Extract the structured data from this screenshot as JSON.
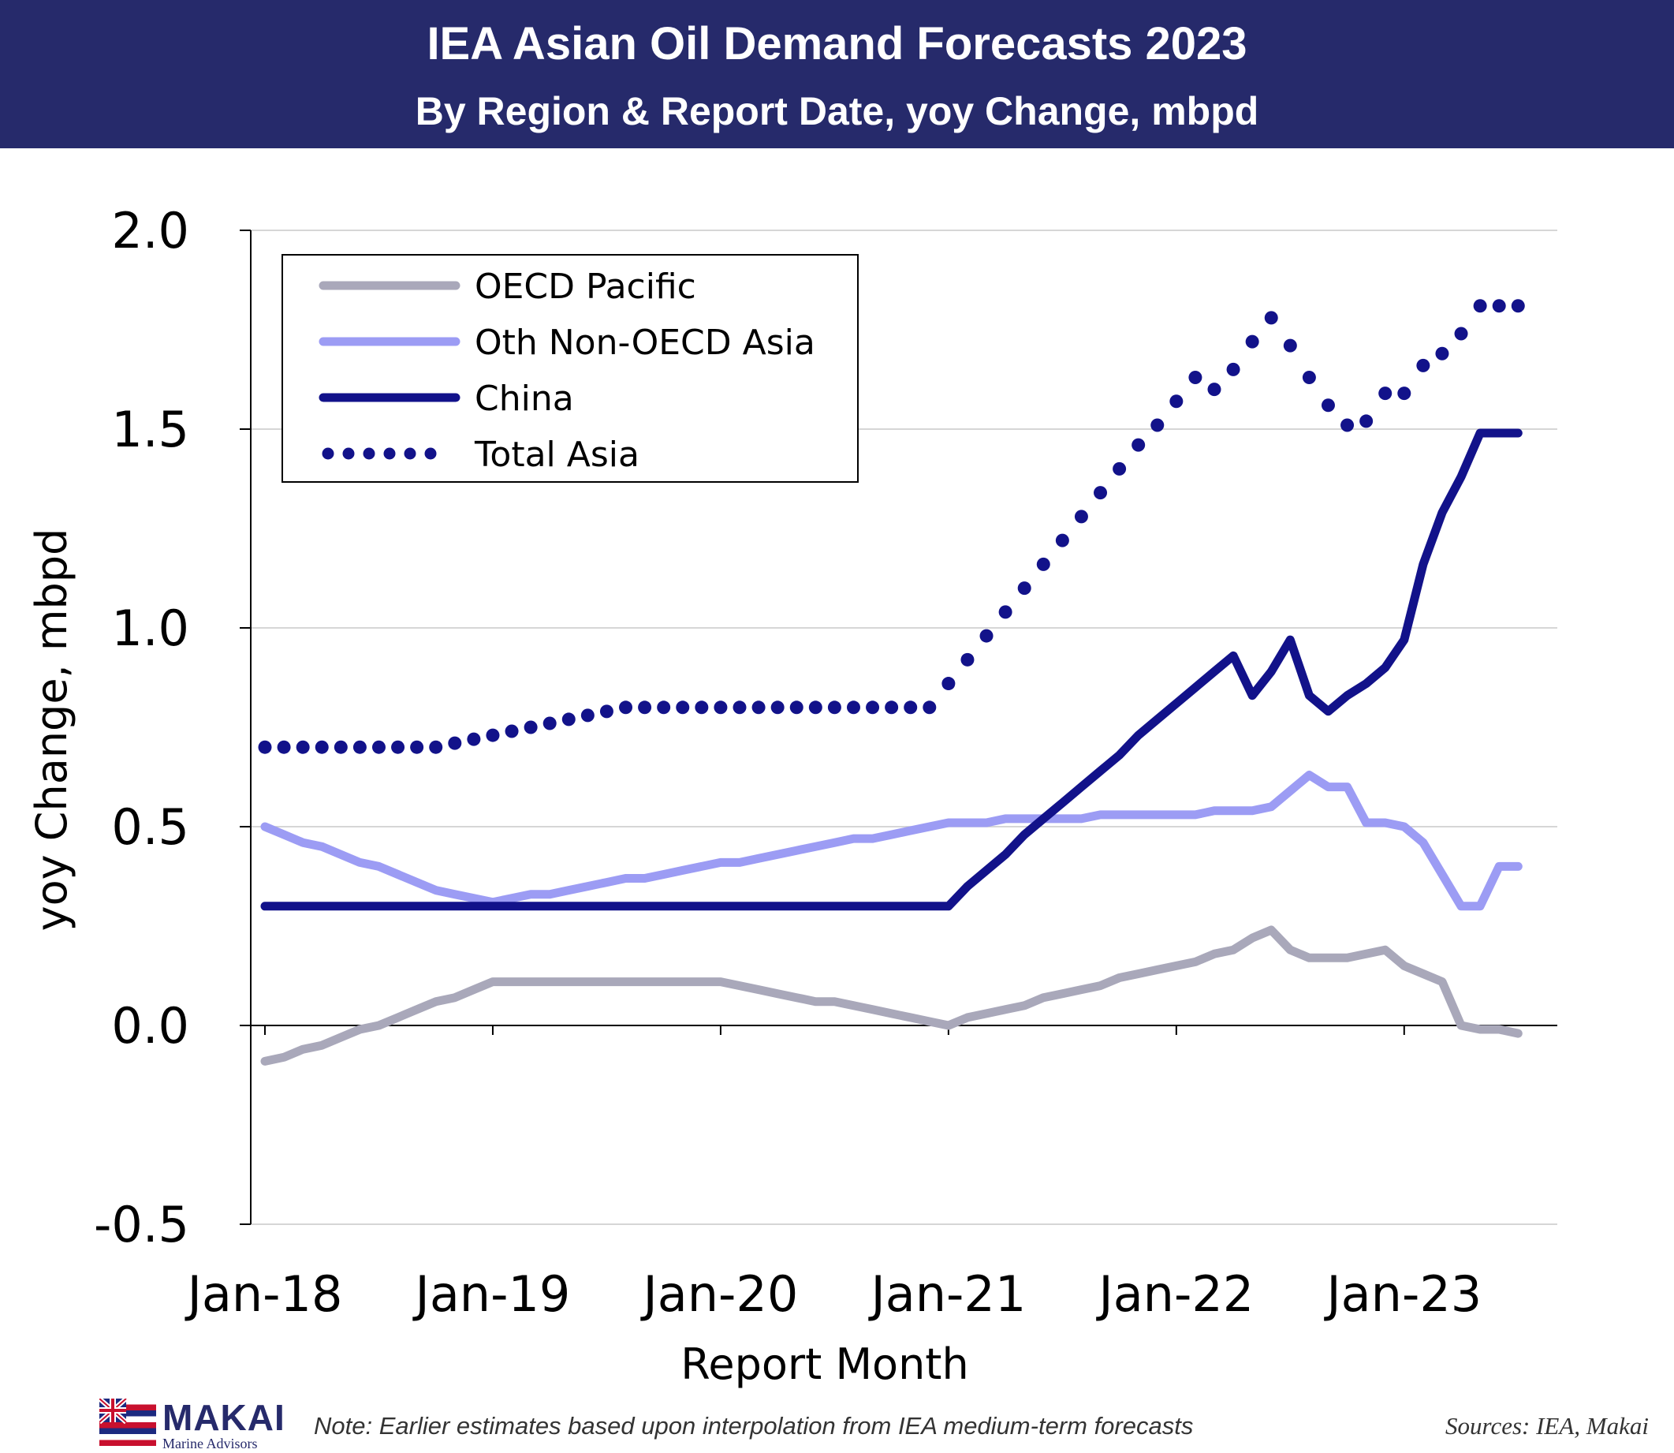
{
  "header": {
    "title": "IEA Asian Oil Demand Forecasts 2023",
    "subtitle": "By Region & Report Date, yoy Change, mbpd"
  },
  "colors": {
    "title_bar": "#262a6b",
    "oecd_pacific": "#a9a8ba",
    "oth_non_oecd_asia": "#9c9cf4",
    "china": "#12128a",
    "total_asia": "#12128a"
  },
  "chart_data": {
    "type": "line",
    "title": "IEA Asian Oil Demand Forecasts 2023",
    "subtitle": "By Region & Report Date, yoy Change, mbpd",
    "xlabel": "Report Month",
    "ylabel": "yoy Change, mbpd",
    "ylim": [
      -0.5,
      2.0
    ],
    "yticks": [
      "-0.5",
      "0.0",
      "0.5",
      "1.0",
      "1.5",
      "2.0"
    ],
    "x_ticks": [
      "Jan-18",
      "Jan-19",
      "Jan-20",
      "Jan-21",
      "Jan-22",
      "Jan-23"
    ],
    "grid": "horizontal",
    "legend_position": "top-left",
    "x": [
      "Jan-18",
      "Feb-18",
      "Mar-18",
      "Apr-18",
      "May-18",
      "Jun-18",
      "Jul-18",
      "Aug-18",
      "Sep-18",
      "Oct-18",
      "Nov-18",
      "Dec-18",
      "Jan-19",
      "Feb-19",
      "Mar-19",
      "Apr-19",
      "May-19",
      "Jun-19",
      "Jul-19",
      "Aug-19",
      "Sep-19",
      "Oct-19",
      "Nov-19",
      "Dec-19",
      "Jan-20",
      "Feb-20",
      "Mar-20",
      "Apr-20",
      "May-20",
      "Jun-20",
      "Jul-20",
      "Aug-20",
      "Sep-20",
      "Oct-20",
      "Nov-20",
      "Dec-20",
      "Jan-21",
      "Feb-21",
      "Mar-21",
      "Apr-21",
      "May-21",
      "Jun-21",
      "Jul-21",
      "Aug-21",
      "Sep-21",
      "Oct-21",
      "Nov-21",
      "Dec-21",
      "Jan-22",
      "Feb-22",
      "Mar-22",
      "Apr-22",
      "May-22",
      "Jun-22",
      "Jul-22",
      "Aug-22",
      "Sep-22",
      "Oct-22",
      "Nov-22",
      "Dec-22",
      "Jan-23",
      "Feb-23",
      "Mar-23",
      "Apr-23",
      "May-23",
      "Jun-23",
      "Jul-23"
    ],
    "series": [
      {
        "name": "OECD Pacific",
        "style": "solid",
        "values": [
          -0.09,
          -0.08,
          -0.06,
          -0.05,
          -0.03,
          -0.01,
          0.0,
          0.02,
          0.04,
          0.06,
          0.07,
          0.09,
          0.11,
          0.11,
          0.11,
          0.11,
          0.11,
          0.11,
          0.11,
          0.11,
          0.11,
          0.11,
          0.11,
          0.11,
          0.11,
          0.1,
          0.09,
          0.08,
          0.07,
          0.06,
          0.06,
          0.05,
          0.04,
          0.03,
          0.02,
          0.01,
          0.0,
          0.02,
          0.03,
          0.04,
          0.05,
          0.07,
          0.08,
          0.09,
          0.1,
          0.12,
          0.13,
          0.14,
          0.15,
          0.16,
          0.18,
          0.19,
          0.22,
          0.24,
          0.19,
          0.17,
          0.17,
          0.17,
          0.18,
          0.19,
          0.15,
          0.13,
          0.11,
          0.0,
          -0.01,
          -0.01,
          -0.02
        ]
      },
      {
        "name": "Oth Non-OECD Asia",
        "style": "solid",
        "values": [
          0.5,
          0.48,
          0.46,
          0.45,
          0.43,
          0.41,
          0.4,
          0.38,
          0.36,
          0.34,
          0.33,
          0.32,
          0.31,
          0.32,
          0.33,
          0.33,
          0.34,
          0.35,
          0.36,
          0.37,
          0.37,
          0.38,
          0.39,
          0.4,
          0.41,
          0.41,
          0.42,
          0.43,
          0.44,
          0.45,
          0.46,
          0.47,
          0.47,
          0.48,
          0.49,
          0.5,
          0.51,
          0.51,
          0.51,
          0.52,
          0.52,
          0.52,
          0.52,
          0.52,
          0.53,
          0.53,
          0.53,
          0.53,
          0.53,
          0.53,
          0.54,
          0.54,
          0.54,
          0.55,
          0.59,
          0.63,
          0.6,
          0.6,
          0.51,
          0.51,
          0.5,
          0.46,
          0.38,
          0.3,
          0.3,
          0.4,
          0.4
        ]
      },
      {
        "name": "China",
        "style": "solid",
        "values": [
          0.3,
          0.3,
          0.3,
          0.3,
          0.3,
          0.3,
          0.3,
          0.3,
          0.3,
          0.3,
          0.3,
          0.3,
          0.3,
          0.3,
          0.3,
          0.3,
          0.3,
          0.3,
          0.3,
          0.3,
          0.3,
          0.3,
          0.3,
          0.3,
          0.3,
          0.3,
          0.3,
          0.3,
          0.3,
          0.3,
          0.3,
          0.3,
          0.3,
          0.3,
          0.3,
          0.3,
          0.3,
          0.35,
          0.39,
          0.43,
          0.48,
          0.52,
          0.56,
          0.6,
          0.64,
          0.68,
          0.73,
          0.77,
          0.81,
          0.85,
          0.89,
          0.93,
          0.83,
          0.89,
          0.97,
          0.83,
          0.79,
          0.83,
          0.86,
          0.9,
          0.97,
          1.16,
          1.29,
          1.38,
          1.49,
          1.49,
          1.49
        ]
      },
      {
        "name": "Total Asia",
        "style": "dotted",
        "values": [
          0.7,
          0.7,
          0.7,
          0.7,
          0.7,
          0.7,
          0.7,
          0.7,
          0.7,
          0.7,
          0.71,
          0.72,
          0.73,
          0.74,
          0.75,
          0.76,
          0.77,
          0.78,
          0.79,
          0.8,
          0.8,
          0.8,
          0.8,
          0.8,
          0.8,
          0.8,
          0.8,
          0.8,
          0.8,
          0.8,
          0.8,
          0.8,
          0.8,
          0.8,
          0.8,
          0.8,
          0.86,
          0.92,
          0.98,
          1.04,
          1.1,
          1.16,
          1.22,
          1.28,
          1.34,
          1.4,
          1.46,
          1.51,
          1.57,
          1.63,
          1.6,
          1.65,
          1.72,
          1.78,
          1.71,
          1.63,
          1.56,
          1.51,
          1.52,
          1.59,
          1.59,
          1.66,
          1.69,
          1.74,
          1.81,
          1.81,
          1.81
        ]
      }
    ]
  },
  "legend": {
    "items": [
      "OECD Pacific",
      "Oth Non-OECD Asia",
      "China",
      "Total Asia"
    ]
  },
  "footer": {
    "logo_name": "MAKAI",
    "logo_tagline": "Marine Advisors",
    "note": "Note: Earlier estimates based upon interpolation from IEA medium-term forecasts",
    "sources": "Sources: IEA, Makai"
  }
}
